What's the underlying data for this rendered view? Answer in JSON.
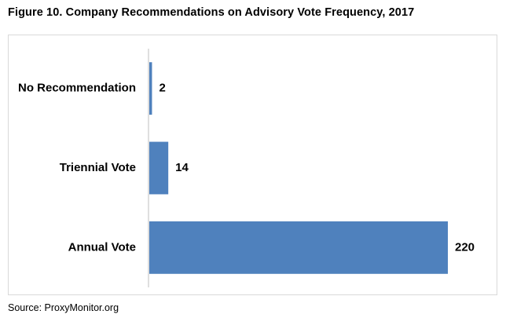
{
  "title": "Figure 10. Company Recommendations on Advisory Vote Frequency, 2017",
  "source": "Source: ProxyMonitor.org",
  "colors": {
    "bar": "#4f81bd",
    "axis": "#bfbfbf",
    "frame": "#d9d9d9",
    "text": "#000000"
  },
  "chart_data": {
    "type": "bar",
    "orientation": "horizontal",
    "categories": [
      "No Recommendation",
      "Triennial Vote",
      "Annual Vote"
    ],
    "values": [
      2,
      14,
      220
    ],
    "data_labels": [
      "2",
      "14",
      "220"
    ],
    "title": "Figure 10. Company Recommendations on Advisory Vote Frequency, 2017",
    "xlabel": "",
    "ylabel": "",
    "xlim": [
      0,
      220
    ],
    "grid": false,
    "legend": "none"
  }
}
